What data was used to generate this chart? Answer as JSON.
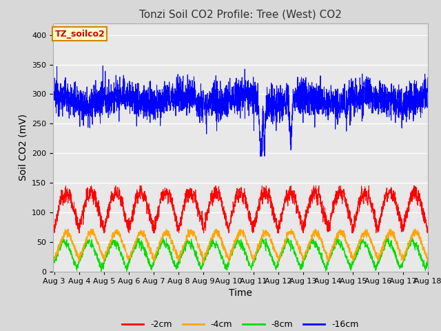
{
  "title": "Tonzi Soil CO2 Profile: Tree (West) CO2",
  "xlabel": "Time",
  "ylabel": "Soil CO2 (mV)",
  "legend_label": "TZ_soilco2",
  "series_labels": [
    "-2cm",
    "-4cm",
    "-8cm",
    "-16cm"
  ],
  "series_colors": [
    "#ff0000",
    "#ffa500",
    "#00dd00",
    "#0000ff"
  ],
  "xlim_days": [
    3,
    18
  ],
  "ylim": [
    0,
    420
  ],
  "yticks": [
    0,
    50,
    100,
    150,
    200,
    250,
    300,
    350,
    400
  ],
  "background_color": "#e8e8e8",
  "grid_color": "#ffffff",
  "title_fontsize": 11,
  "axis_label_fontsize": 10,
  "tick_label_fontsize": 8,
  "legend_fontsize": 9,
  "n_points": 3000
}
